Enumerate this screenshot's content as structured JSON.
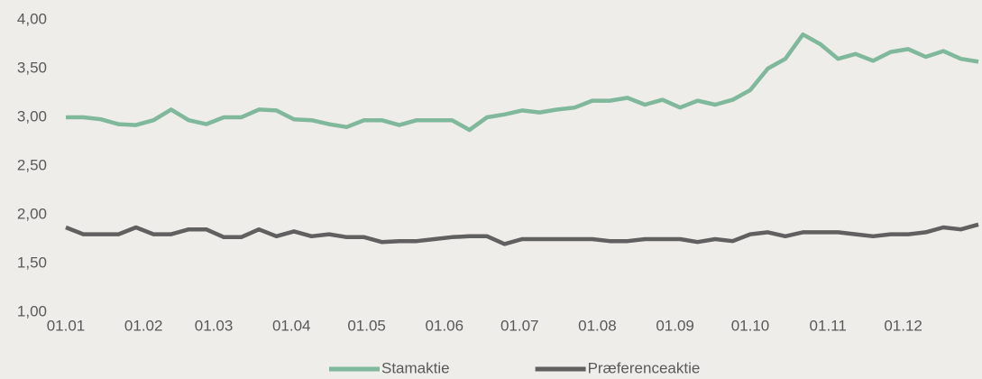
{
  "chart_data": {
    "type": "line",
    "x": [
      "01.01",
      "08.01",
      "15.01",
      "22.01",
      "29.01",
      "05.02",
      "12.02",
      "19.02",
      "26.02",
      "05.03",
      "12.03",
      "19.03",
      "26.03",
      "02.04",
      "09.04",
      "16.04",
      "23.04",
      "30.04",
      "07.05",
      "14.05",
      "21.05",
      "28.05",
      "04.06",
      "11.06",
      "18.06",
      "25.06",
      "02.07",
      "09.07",
      "16.07",
      "23.07",
      "30.07",
      "06.08",
      "13.08",
      "20.08",
      "27.08",
      "03.09",
      "10.09",
      "17.09",
      "24.09",
      "01.10",
      "08.10",
      "15.10",
      "22.10",
      "29.10",
      "05.11",
      "12.11",
      "19.11",
      "26.11",
      "03.12",
      "10.12",
      "17.12",
      "24.12",
      "31.12"
    ],
    "series": [
      {
        "name": "Stamaktie",
        "color": "#7fb89a",
        "values": [
          3.0,
          3.0,
          2.98,
          2.93,
          2.92,
          2.97,
          3.08,
          2.97,
          2.93,
          3.0,
          3.0,
          3.08,
          3.07,
          2.98,
          2.97,
          2.93,
          2.9,
          2.97,
          2.97,
          2.92,
          2.97,
          2.97,
          2.97,
          2.87,
          3.0,
          3.03,
          3.07,
          3.05,
          3.08,
          3.1,
          3.17,
          3.17,
          3.2,
          3.13,
          3.18,
          3.1,
          3.17,
          3.13,
          3.18,
          3.28,
          3.5,
          3.6,
          3.85,
          3.75,
          3.6,
          3.65,
          3.58,
          3.67,
          3.7,
          3.62,
          3.68,
          3.6,
          3.57
        ]
      },
      {
        "name": "Præferenceaktie",
        "color": "#606060",
        "values": [
          1.87,
          1.8,
          1.8,
          1.8,
          1.87,
          1.8,
          1.8,
          1.85,
          1.85,
          1.77,
          1.77,
          1.85,
          1.78,
          1.83,
          1.78,
          1.8,
          1.77,
          1.77,
          1.72,
          1.73,
          1.73,
          1.75,
          1.77,
          1.78,
          1.78,
          1.7,
          1.75,
          1.75,
          1.75,
          1.75,
          1.75,
          1.73,
          1.73,
          1.75,
          1.75,
          1.75,
          1.72,
          1.75,
          1.73,
          1.8,
          1.82,
          1.78,
          1.82,
          1.82,
          1.82,
          1.8,
          1.78,
          1.8,
          1.8,
          1.82,
          1.87,
          1.85,
          1.9
        ]
      }
    ],
    "xlim": [
      "01.01",
      "31.12"
    ],
    "xticks": [
      "01.01",
      "01.02",
      "01.03",
      "01.04",
      "01.05",
      "01.06",
      "01.07",
      "01.08",
      "01.09",
      "01.10",
      "01.11",
      "01.12"
    ],
    "ylim": [
      1,
      4
    ],
    "yticks": [
      {
        "value": 1,
        "label": "1,00"
      },
      {
        "value": 1.5,
        "label": "1,50"
      },
      {
        "value": 2,
        "label": "2,00"
      },
      {
        "value": 2.5,
        "label": "2,50"
      },
      {
        "value": 3,
        "label": "3,00"
      },
      {
        "value": 3.5,
        "label": "3,50"
      },
      {
        "value": 4,
        "label": "4,00"
      }
    ],
    "grid": false,
    "legend": "bottom"
  }
}
